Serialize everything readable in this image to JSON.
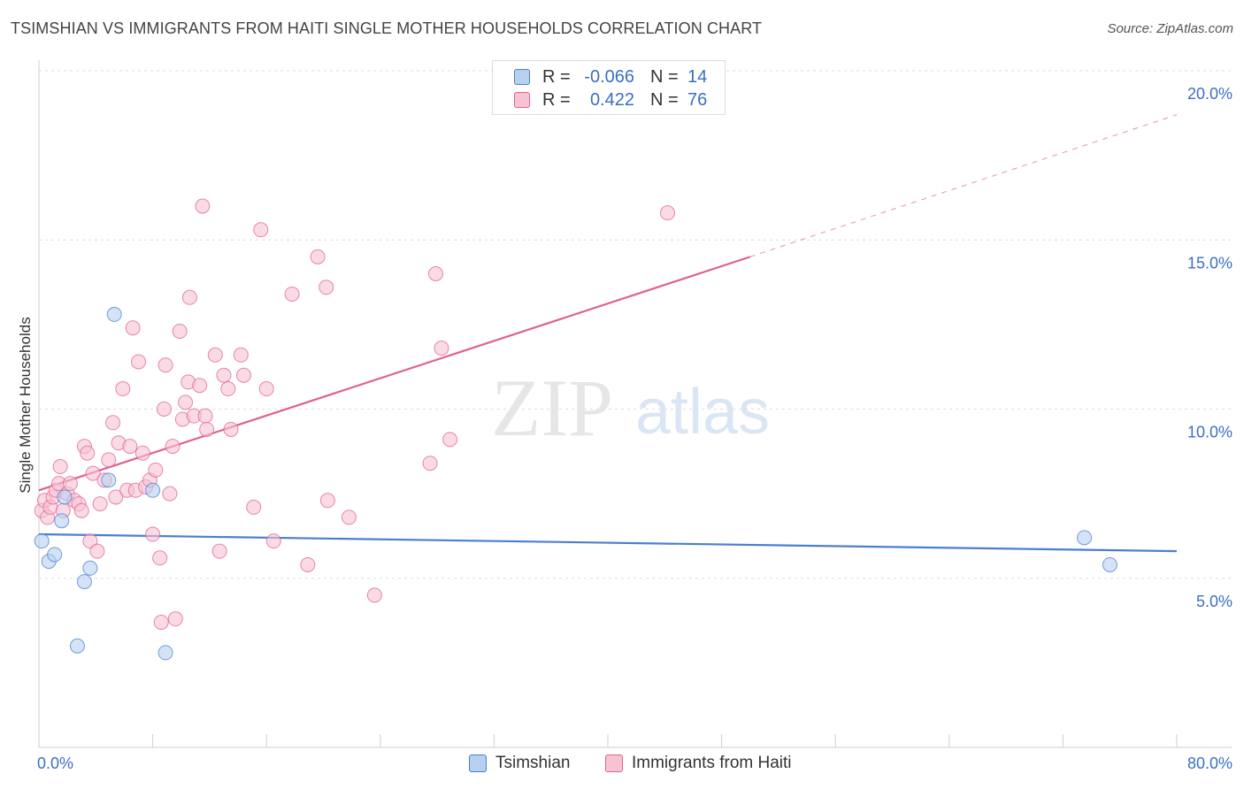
{
  "title": "TSIMSHIAN VS IMMIGRANTS FROM HAITI SINGLE MOTHER HOUSEHOLDS CORRELATION CHART",
  "source": "Source: ZipAtlas.com",
  "colors": {
    "blue": "#4a7fd0",
    "blue_fill": "#b8d0f0",
    "pink": "#e0628e",
    "pink_fill": "#f7c3d3",
    "axis_text": "#3a6fc4"
  },
  "legend_top": [
    {
      "r_label": "R =",
      "r_value": "-0.066",
      "n_label": "N =",
      "n_value": "14"
    },
    {
      "r_label": "R =",
      "r_value": "0.422",
      "n_label": "N =",
      "n_value": "76"
    }
  ],
  "chart_data": {
    "type": "scatter",
    "xlabel": "",
    "ylabel": "Single Mother Households",
    "xlim": [
      0,
      80
    ],
    "ylim": [
      0,
      20
    ],
    "x_tick_labels": [
      "0.0%",
      "80.0%"
    ],
    "y_ticks": [
      5,
      10,
      15,
      20
    ],
    "y_tick_labels": [
      "5.0%",
      "10.0%",
      "15.0%",
      "20.0%"
    ],
    "grid": true,
    "legend_placement": "bottom",
    "watermark": {
      "zip": "ZIP",
      "atlas": "atlas"
    },
    "series": [
      {
        "name": "Tsimshian",
        "color": "#4a7fd0",
        "fill": "#b8d0f0",
        "points": [
          [
            0.2,
            6.1
          ],
          [
            0.7,
            5.5
          ],
          [
            1.1,
            5.7
          ],
          [
            1.6,
            6.7
          ],
          [
            1.8,
            7.4
          ],
          [
            2.7,
            3.0
          ],
          [
            3.2,
            4.9
          ],
          [
            3.6,
            5.3
          ],
          [
            4.9,
            7.9
          ],
          [
            5.3,
            12.8
          ],
          [
            8.0,
            7.6
          ],
          [
            8.9,
            2.8
          ],
          [
            73.5,
            6.2
          ],
          [
            75.3,
            5.4
          ]
        ],
        "trend": {
          "x": [
            0,
            80
          ],
          "y": [
            6.3,
            5.8
          ],
          "dashed_to": null
        }
      },
      {
        "name": "Immigrants from Haiti",
        "color": "#e0628e",
        "fill": "#f7c3d3",
        "points": [
          [
            0.2,
            7.0
          ],
          [
            0.4,
            7.3
          ],
          [
            0.6,
            6.8
          ],
          [
            0.8,
            7.1
          ],
          [
            1.0,
            7.4
          ],
          [
            1.2,
            7.6
          ],
          [
            1.4,
            7.8
          ],
          [
            1.5,
            8.3
          ],
          [
            1.7,
            7.0
          ],
          [
            2.0,
            7.5
          ],
          [
            2.2,
            7.8
          ],
          [
            2.5,
            7.3
          ],
          [
            2.8,
            7.2
          ],
          [
            3.0,
            7.0
          ],
          [
            3.2,
            8.9
          ],
          [
            3.4,
            8.7
          ],
          [
            3.6,
            6.1
          ],
          [
            3.8,
            8.1
          ],
          [
            4.1,
            5.8
          ],
          [
            4.3,
            7.2
          ],
          [
            4.6,
            7.9
          ],
          [
            4.9,
            8.5
          ],
          [
            5.2,
            9.6
          ],
          [
            5.4,
            7.4
          ],
          [
            5.6,
            9.0
          ],
          [
            5.9,
            10.6
          ],
          [
            6.2,
            7.6
          ],
          [
            6.4,
            8.9
          ],
          [
            6.6,
            12.4
          ],
          [
            6.8,
            7.6
          ],
          [
            7.0,
            11.4
          ],
          [
            7.3,
            8.7
          ],
          [
            7.5,
            7.7
          ],
          [
            7.8,
            7.9
          ],
          [
            8.0,
            6.3
          ],
          [
            8.2,
            8.2
          ],
          [
            8.5,
            5.6
          ],
          [
            8.6,
            3.7
          ],
          [
            8.8,
            10.0
          ],
          [
            8.9,
            11.3
          ],
          [
            9.2,
            7.5
          ],
          [
            9.4,
            8.9
          ],
          [
            9.6,
            3.8
          ],
          [
            9.9,
            12.3
          ],
          [
            10.1,
            9.7
          ],
          [
            10.3,
            10.2
          ],
          [
            10.5,
            10.8
          ],
          [
            10.6,
            13.3
          ],
          [
            10.9,
            9.8
          ],
          [
            11.3,
            10.7
          ],
          [
            11.5,
            16.0
          ],
          [
            11.7,
            9.8
          ],
          [
            11.8,
            9.4
          ],
          [
            12.4,
            11.6
          ],
          [
            12.7,
            5.8
          ],
          [
            13.0,
            11.0
          ],
          [
            13.3,
            10.6
          ],
          [
            13.5,
            9.4
          ],
          [
            14.2,
            11.6
          ],
          [
            14.4,
            11.0
          ],
          [
            15.1,
            7.1
          ],
          [
            15.6,
            15.3
          ],
          [
            16.0,
            10.6
          ],
          [
            16.5,
            6.1
          ],
          [
            17.8,
            13.4
          ],
          [
            18.9,
            5.4
          ],
          [
            19.6,
            14.5
          ],
          [
            20.2,
            13.6
          ],
          [
            20.3,
            7.3
          ],
          [
            21.8,
            6.8
          ],
          [
            23.6,
            4.5
          ],
          [
            27.5,
            8.4
          ],
          [
            27.9,
            14.0
          ],
          [
            28.3,
            11.8
          ],
          [
            28.9,
            9.1
          ],
          [
            44.2,
            15.8
          ]
        ],
        "trend": {
          "x": [
            0,
            50
          ],
          "y": [
            7.6,
            14.5
          ],
          "dashed_to": {
            "x": 80,
            "y": 18.7
          }
        }
      }
    ]
  }
}
